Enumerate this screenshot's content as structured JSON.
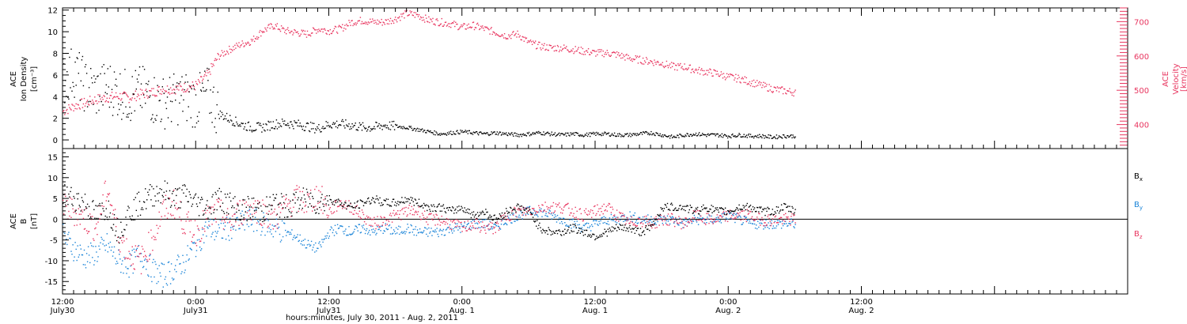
{
  "colors": {
    "axis": "#000000",
    "density": "#000000",
    "velocity": "#e8355f",
    "bx": "#000000",
    "by": "#1a84d8",
    "bz": "#e8355f",
    "zero_line": "#000000"
  },
  "chart_data": [
    {
      "type": "scatter",
      "panel": "top",
      "ylabel_left": [
        "ACE",
        "Ion Density",
        "[cm⁻³]"
      ],
      "ylabel_right": [
        "ACE",
        "Velocity",
        "[km/s]"
      ],
      "ylim_left": [
        -0.8,
        12.2
      ],
      "ylim_right": [
        330,
        740
      ],
      "yticks_left": [
        0,
        2,
        4,
        6,
        8,
        10,
        12
      ],
      "yticks_right": [
        400,
        500,
        600,
        700
      ],
      "x_range_hours": [
        0,
        66
      ],
      "series": [
        {
          "role": "density",
          "x": [
            0,
            1,
            2,
            3,
            4,
            5,
            6,
            7,
            8,
            9,
            10,
            11,
            12,
            13,
            14,
            15,
            16,
            17,
            18,
            19,
            20,
            21,
            22,
            23,
            24,
            25,
            26,
            27,
            28,
            29,
            30,
            31,
            32,
            33,
            34,
            35,
            36,
            37,
            38,
            39,
            40,
            41,
            42,
            43,
            44,
            45,
            46,
            47,
            48,
            49,
            50,
            51,
            52,
            53,
            54,
            55,
            56,
            57,
            58,
            59,
            60,
            61,
            62,
            63,
            64,
            65,
            66
          ],
          "values": [
            5.5,
            6.5,
            5,
            4.5,
            5,
            4.5,
            4,
            4.5,
            4,
            3.5,
            3.8,
            4,
            3.5,
            4.5,
            2.5,
            2,
            1.5,
            1.2,
            1.2,
            1.5,
            1.6,
            1.5,
            1.3,
            1.1,
            1.5,
            1.5,
            1.4,
            1.2,
            1.2,
            1.4,
            1.3,
            1.2,
            1,
            0.8,
            0.6,
            0.7,
            0.8,
            0.7,
            0.6,
            0.7,
            0.6,
            0.5,
            0.6,
            0.7,
            0.6,
            0.5,
            0.6,
            0.5,
            0.6,
            0.6,
            0.5,
            0.5,
            0.6,
            0.7,
            0.5,
            0.3,
            0.5,
            0.6,
            0.5,
            0.5,
            0.4,
            0.5,
            0.4,
            0.4,
            0.3,
            0.4,
            0.4
          ]
        },
        {
          "role": "velocity",
          "x": [
            0,
            1,
            2,
            3,
            4,
            5,
            6,
            7,
            8,
            9,
            10,
            11,
            12,
            13,
            14,
            15,
            16,
            17,
            18,
            19,
            20,
            21,
            22,
            23,
            24,
            25,
            26,
            27,
            28,
            29,
            30,
            31,
            32,
            33,
            34,
            35,
            36,
            37,
            38,
            39,
            40,
            41,
            42,
            43,
            44,
            45,
            46,
            47,
            48,
            49,
            50,
            51,
            52,
            53,
            54,
            55,
            56,
            57,
            58,
            59,
            60,
            61,
            62,
            63,
            64,
            65,
            66
          ],
          "values": [
            440,
            455,
            465,
            475,
            480,
            485,
            480,
            490,
            495,
            505,
            505,
            510,
            515,
            545,
            600,
            620,
            635,
            645,
            675,
            690,
            675,
            670,
            665,
            680,
            675,
            680,
            700,
            705,
            700,
            700,
            710,
            725,
            720,
            705,
            700,
            695,
            685,
            690,
            680,
            670,
            660,
            665,
            640,
            630,
            625,
            625,
            620,
            615,
            610,
            610,
            605,
            595,
            590,
            585,
            580,
            570,
            570,
            560,
            555,
            550,
            540,
            535,
            525,
            515,
            505,
            500,
            495
          ]
        }
      ]
    },
    {
      "type": "scatter",
      "panel": "bottom",
      "ylabel": [
        "ACE",
        "B",
        "[nT]"
      ],
      "ylim": [
        -18,
        17
      ],
      "yticks": [
        -15,
        -10,
        -5,
        0,
        5,
        10,
        15
      ],
      "x_range_hours": [
        0,
        66
      ],
      "legend": [
        "B",
        "B",
        "B"
      ],
      "legend_subscripts": [
        "x",
        "y",
        "z"
      ],
      "legend_placement": "right",
      "series": [
        {
          "name": "Bx",
          "x": [
            0,
            1,
            2,
            3,
            4,
            5,
            6,
            7,
            8,
            9,
            10,
            11,
            12,
            13,
            14,
            15,
            16,
            17,
            18,
            19,
            20,
            21,
            22,
            23,
            24,
            25,
            26,
            27,
            28,
            29,
            30,
            31,
            32,
            33,
            34,
            35,
            36,
            37,
            38,
            39,
            40,
            41,
            42,
            43,
            44,
            45,
            46,
            47,
            48,
            49,
            50,
            51,
            52,
            53,
            54,
            55,
            56,
            57,
            58,
            59,
            60,
            61,
            62,
            63,
            64,
            65,
            66
          ],
          "values": [
            6,
            5,
            4,
            1,
            3,
            -3,
            2,
            4,
            6,
            7,
            5,
            6,
            4,
            3,
            5,
            4,
            2,
            3,
            2,
            4,
            3,
            4,
            5,
            4,
            5,
            4,
            3,
            4,
            5,
            4,
            4,
            5,
            4,
            3,
            3,
            2,
            3,
            1,
            2,
            0,
            2,
            3,
            2,
            -2,
            -3,
            -3,
            -2,
            -3,
            -4,
            -3,
            -2,
            -2,
            -3,
            -2,
            3,
            3,
            3,
            2,
            3,
            2,
            2,
            3,
            3,
            2,
            2,
            3,
            2
          ]
        },
        {
          "name": "By",
          "x": [
            0,
            1,
            2,
            3,
            4,
            5,
            6,
            7,
            8,
            9,
            10,
            11,
            12,
            13,
            14,
            15,
            16,
            17,
            18,
            19,
            20,
            21,
            22,
            23,
            24,
            25,
            26,
            27,
            28,
            29,
            30,
            31,
            32,
            33,
            34,
            35,
            36,
            37,
            38,
            39,
            40,
            41,
            42,
            43,
            44,
            45,
            46,
            47,
            48,
            49,
            50,
            51,
            52,
            53,
            54,
            55,
            56,
            57,
            58,
            59,
            60,
            61,
            62,
            63,
            64,
            65,
            66
          ],
          "values": [
            -4,
            -7,
            -9,
            -8,
            -6,
            -10,
            -11,
            -8,
            -12,
            -13.5,
            -12,
            -10,
            -6,
            -2,
            -3,
            -2,
            -1,
            0,
            -1,
            -2,
            -3,
            -4,
            -6,
            -7,
            -3,
            -2,
            -3,
            -2,
            -3,
            -2,
            -3,
            -2,
            -3,
            -3,
            -3,
            -2,
            -2,
            -1,
            -1,
            -2,
            0,
            1,
            2,
            2,
            1,
            0,
            -1,
            -2,
            -1,
            0,
            0,
            1,
            0,
            0,
            0,
            0,
            -1,
            0,
            0,
            0,
            1,
            0,
            -1,
            -1,
            -1,
            -1,
            -1
          ]
        },
        {
          "name": "Bz",
          "x": [
            0,
            1,
            2,
            3,
            4,
            5,
            6,
            7,
            8,
            9,
            10,
            11,
            12,
            13,
            14,
            15,
            16,
            17,
            18,
            19,
            20,
            21,
            22,
            23,
            24,
            25,
            26,
            27,
            28,
            29,
            30,
            31,
            32,
            33,
            34,
            35,
            36,
            37,
            38,
            39,
            40,
            41,
            42,
            43,
            44,
            45,
            46,
            47,
            48,
            49,
            50,
            51,
            52,
            53,
            54,
            55,
            56,
            57,
            58,
            59,
            60,
            61,
            62,
            63,
            64,
            65,
            66
          ],
          "values": [
            3,
            2,
            0,
            -2,
            8,
            -4,
            -8,
            -10,
            -5,
            2,
            4,
            -1,
            -3,
            0,
            2,
            -1,
            2,
            3,
            2,
            0,
            3,
            5,
            4,
            6,
            2,
            4,
            3,
            1,
            -1,
            0,
            1,
            2,
            2,
            0,
            0,
            -1,
            -2,
            -1,
            -2,
            -2,
            1,
            2,
            2,
            3,
            3,
            3,
            2,
            1,
            2,
            3,
            1,
            -1,
            0,
            -1,
            0,
            0,
            -1,
            1,
            0,
            0,
            1,
            1,
            1,
            0,
            0,
            0,
            0
          ]
        }
      ]
    }
  ],
  "xaxis": {
    "ticks": [
      {
        "hours": 0,
        "time": "12:00",
        "date": "July30"
      },
      {
        "hours": 12,
        "time": "0:00",
        "date": "July31"
      },
      {
        "hours": 24,
        "time": "12:00",
        "date": "July31"
      },
      {
        "hours": 36,
        "time": "0:00",
        "date": "Aug. 1"
      },
      {
        "hours": 48,
        "time": "12:00",
        "date": "Aug. 1"
      },
      {
        "hours": 60,
        "time": "0:00",
        "date": "Aug. 2"
      },
      {
        "hours": 72,
        "time": "12:00",
        "date": "Aug. 2"
      }
    ],
    "xlabel": "hours:minutes, July 30, 2011 - Aug.  2, 2011"
  }
}
